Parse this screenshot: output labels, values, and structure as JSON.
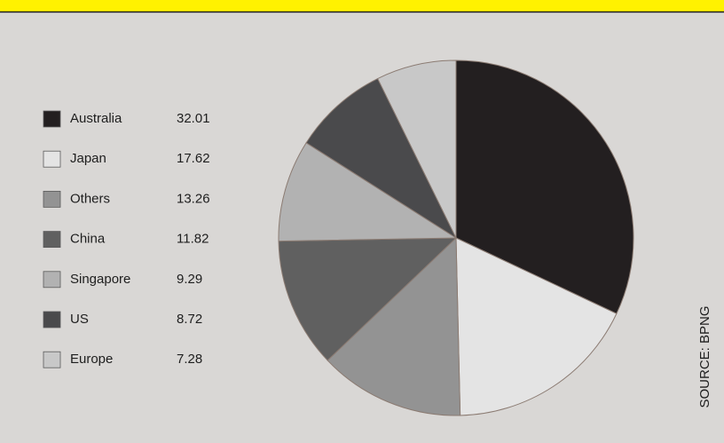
{
  "chart_data": {
    "type": "pie",
    "categories": [
      "Australia",
      "Japan",
      "Others",
      "China",
      "Singapore",
      "US",
      "Europe"
    ],
    "values": [
      32.01,
      17.62,
      13.26,
      11.82,
      9.29,
      8.72,
      7.28
    ],
    "colors": [
      "#231f20",
      "#e4e4e4",
      "#939393",
      "#606060",
      "#b2b2b2",
      "#4a4a4c",
      "#c8c8c8"
    ],
    "source": "SOURCE: BPNG"
  }
}
